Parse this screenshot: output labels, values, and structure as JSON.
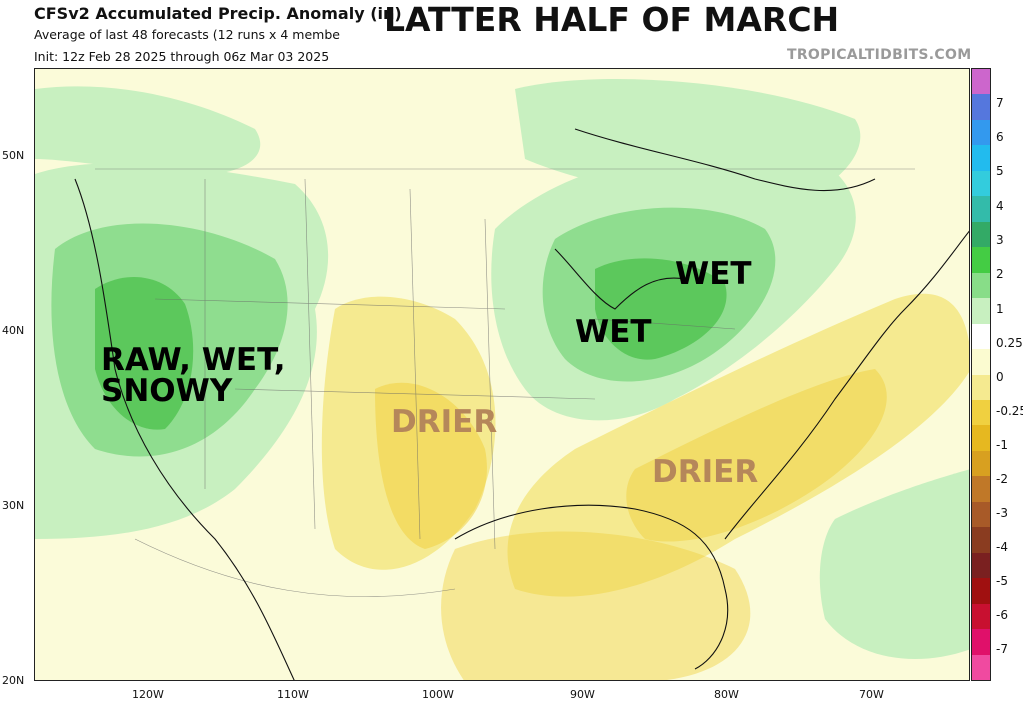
{
  "header": {
    "title": "CFSv2 Accumulated Precip. Anomaly (in)",
    "subtitle1": "Average of last 48 forecasts (12 runs x 4 membe",
    "subtitle2": "Init: 12z Feb 28 2025 through 06z Mar 03 2025",
    "headline": "LATTER HALF OF MARCH",
    "credit": "TROPICALTIDBITS.COM"
  },
  "annotations": [
    {
      "id": "raw-wet-snowy",
      "lines": [
        "RAW, WET,",
        "SNOWY"
      ],
      "color": "#111111"
    },
    {
      "id": "wet-midwest",
      "lines": [
        "WET"
      ],
      "color": "#111111"
    },
    {
      "id": "wet-great-lakes",
      "lines": [
        "WET"
      ],
      "color": "#111111"
    },
    {
      "id": "drier-plains",
      "lines": [
        "DRIER"
      ],
      "color": "#b5875a"
    },
    {
      "id": "drier-southeast",
      "lines": [
        "DRIER"
      ],
      "color": "#b5875a"
    }
  ],
  "axes": {
    "lat_labels": [
      "50N",
      "40N",
      "30N",
      "20N"
    ],
    "lon_labels": [
      "120W",
      "110W",
      "100W",
      "90W",
      "80W",
      "70W"
    ]
  },
  "colorbar": {
    "labels": [
      "7",
      "6",
      "5",
      "4",
      "3",
      "2",
      "1",
      "0.25",
      "0",
      "-0.25",
      "-1",
      "-2",
      "-3",
      "-4",
      "-5",
      "-6",
      "-7"
    ],
    "colors": [
      "#cc66cc",
      "#5577dd",
      "#3399ee",
      "#22bbee",
      "#33ccdd",
      "#33bbaa",
      "#33aa66",
      "#44cc44",
      "#88dd88",
      "#c8f0c0",
      "#ffffff",
      "#fbfbd0",
      "#f5ea90",
      "#f0d040",
      "#e6b820",
      "#d8a020",
      "#c07828",
      "#a85a28",
      "#8a3c20",
      "#7a2020",
      "#a01010",
      "#c81030",
      "#e0106a",
      "#f04aa0"
    ]
  }
}
